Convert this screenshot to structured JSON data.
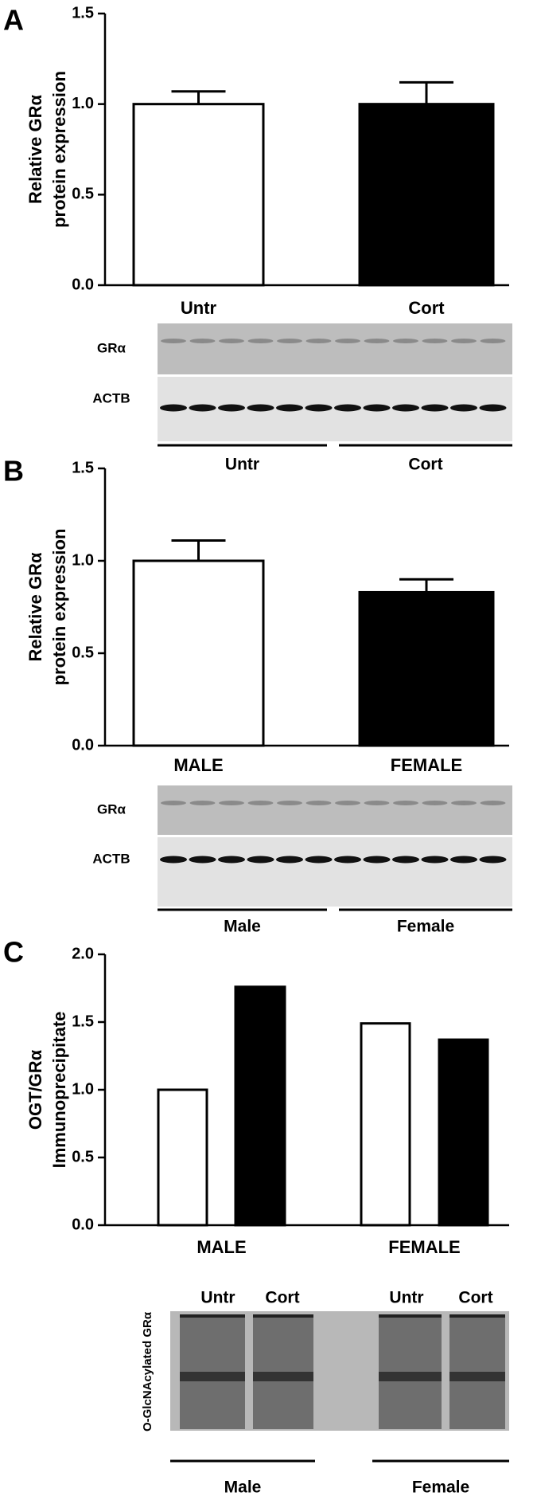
{
  "chart_data": [
    {
      "type": "bar",
      "panel": "A",
      "ylabel": [
        "Relative GRα",
        "protein expression"
      ],
      "categories": [
        "Untr",
        "Cort"
      ],
      "values": [
        1.0,
        1.0
      ],
      "errors": [
        0.07,
        0.12
      ],
      "colors": [
        "#ffffff",
        "#000000"
      ],
      "ylim": [
        0,
        1.5
      ],
      "yticks": [
        {
          "value": 0,
          "label": "0.0"
        },
        0.5,
        {
          "value": 1,
          "label": "1.0"
        },
        1.5
      ],
      "blot": {
        "rows": [
          "GRα",
          "ACTB"
        ],
        "groups": [
          "Untr",
          "Cort"
        ]
      }
    },
    {
      "type": "bar",
      "panel": "B",
      "ylabel": [
        "Relative GRα",
        "protein expression"
      ],
      "categories": [
        "MALE",
        "FEMALE"
      ],
      "values": [
        1.0,
        0.83
      ],
      "errors": [
        0.11,
        0.07
      ],
      "colors": [
        "#ffffff",
        "#000000"
      ],
      "ylim": [
        0,
        1.5
      ],
      "yticks": [
        {
          "value": 0,
          "label": "0.0"
        },
        0.5,
        {
          "value": 1,
          "label": "1.0"
        },
        1.5
      ],
      "blot": {
        "rows": [
          "GRα",
          "ACTB"
        ],
        "groups": [
          "Male",
          "Female"
        ]
      }
    },
    {
      "type": "grouped-bar",
      "panel": "C",
      "ylabel": [
        "OGT/GRα",
        "Immunoprecipitate"
      ],
      "categories": [
        "MALE",
        "FEMALE"
      ],
      "series": [
        {
          "color": "#ffffff",
          "values": [
            1.0,
            1.49
          ]
        },
        {
          "color": "#000000",
          "values": [
            1.76,
            1.37
          ]
        }
      ],
      "ylim": [
        0,
        2
      ],
      "yticks": [
        {
          "value": 0,
          "label": "0.0"
        },
        0.5,
        {
          "value": 1,
          "label": "1.0"
        },
        1.5,
        {
          "value": 2,
          "label": "2.0"
        }
      ],
      "blot": {
        "side_label": "O-GlcNAcylated GRα",
        "lanes": [
          "Untr",
          "Cort",
          "Untr",
          "Cort"
        ],
        "groups": [
          "Male",
          "Female"
        ]
      }
    }
  ]
}
